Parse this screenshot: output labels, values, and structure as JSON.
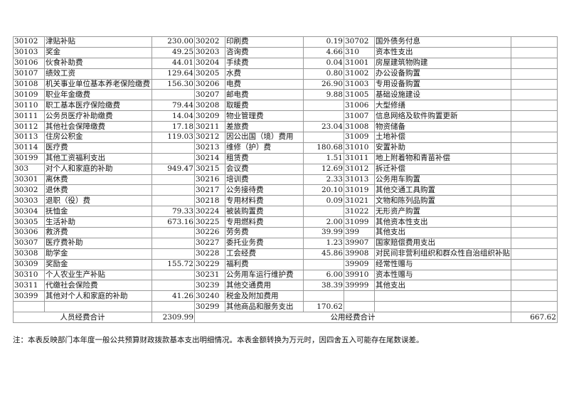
{
  "rows": [
    [
      "30102",
      "津贴补贴",
      "230.00",
      "30202",
      "印刷费",
      "0.19",
      "30702",
      "国外债务付息",
      ""
    ],
    [
      "30103",
      "奖金",
      "49.25",
      "30203",
      "咨询费",
      "4.66",
      "310",
      "资本性支出",
      ""
    ],
    [
      "30106",
      "伙食补助费",
      "44.01",
      "30204",
      "手续费",
      "0.04",
      "31001",
      "房屋建筑物购建",
      ""
    ],
    [
      "30107",
      "绩效工资",
      "129.64",
      "30205",
      "水费",
      "0.80",
      "31002",
      "办公设备购置",
      ""
    ],
    [
      "30108",
      "机关事业单位基本养老保险缴费",
      "156.30",
      "30206",
      "电费",
      "26.90",
      "31003",
      "专用设备购置",
      ""
    ],
    [
      "30109",
      "职业年金缴费",
      "",
      "30207",
      "邮电费",
      "9.88",
      "31005",
      "基础设施建设",
      ""
    ],
    [
      "30110",
      "职工基本医疗保险缴费",
      "79.44",
      "30208",
      "取暖费",
      "",
      "31006",
      "大型修缮",
      ""
    ],
    [
      "30111",
      "公务员医疗补助缴费",
      "14.04",
      "30209",
      "物业管理费",
      "",
      "31007",
      "信息网络及软件购置更新",
      ""
    ],
    [
      "30112",
      "其他社会保障缴费",
      "17.18",
      "30211",
      "差旅费",
      "23.04",
      "31008",
      "物资储备",
      ""
    ],
    [
      "30113",
      "住房公积金",
      "119.03",
      "30212",
      "因公出国（境）费用",
      "",
      "31009",
      "土地补偿",
      ""
    ],
    [
      "30114",
      "医疗费",
      "",
      "30213",
      "维修（护）费",
      "180.68",
      "31010",
      "安置补助",
      ""
    ],
    [
      "30199",
      "其他工资福利支出",
      "",
      "30214",
      "租赁费",
      "1.51",
      "31011",
      "地上附着物和青苗补偿",
      ""
    ],
    [
      "303",
      "对个人和家庭的补助",
      "949.47",
      "30215",
      "会议费",
      "12.69",
      "31012",
      "拆迁补偿",
      ""
    ],
    [
      "30301",
      "离休费",
      "",
      "30216",
      "培训费",
      "2.33",
      "31013",
      "公务用车购置",
      ""
    ],
    [
      "30302",
      "退休费",
      "",
      "30217",
      "公务接待费",
      "20.10",
      "31019",
      "其他交通工具购置",
      ""
    ],
    [
      "30303",
      "退职（役）费",
      "",
      "30218",
      "专用材料费",
      "0.09",
      "31021",
      "文物和陈列品购置",
      ""
    ],
    [
      "30304",
      "抚恤金",
      "79.33",
      "30224",
      "被装购置费",
      "",
      "31022",
      "无形资产购置",
      ""
    ],
    [
      "30305",
      "生活补助",
      "673.16",
      "30225",
      "专用燃料费",
      "2.00",
      "31099",
      "其他资本性支出",
      ""
    ],
    [
      "30306",
      "救济费",
      "",
      "30226",
      "劳务费",
      "39.99",
      "399",
      "其他支出",
      ""
    ],
    [
      "30307",
      "医疗费补助",
      "",
      "30227",
      "委托业务费",
      "1.23",
      "39907",
      "国家赔偿费用支出",
      ""
    ],
    [
      "30308",
      "助学金",
      "",
      "30228",
      "工会经费",
      "45.86",
      "39908",
      "对民间非营利组织和群众性自治组织补贴",
      ""
    ],
    [
      "30309",
      "奖励金",
      "155.72",
      "30229",
      "福利费",
      "",
      "39909",
      "经常性赠与",
      ""
    ],
    [
      "30310",
      "个人农业生产补贴",
      "",
      "30231",
      "公务用车运行维护费",
      "6.00",
      "39910",
      "资本性赠与",
      ""
    ],
    [
      "30311",
      "代缴社会保险费",
      "",
      "30239",
      "其他交通费用",
      "38.39",
      "39999",
      "其他支出",
      ""
    ],
    [
      "30399",
      "其他对个人和家庭的补助",
      "41.26",
      "30240",
      "税金及附加费用",
      "",
      "",
      "",
      ""
    ],
    [
      "",
      "",
      "",
      "30299",
      "其他商品和服务支出",
      "170.62",
      "",
      "",
      ""
    ]
  ],
  "totals": {
    "personnel_label": "人员经费合计",
    "personnel_value": "2309.99",
    "public_label": "公用经费合计",
    "public_value": "667.62"
  },
  "note": "注：本表反映部门本年度一般公共预算财政拨款基本支出明细情况。本表金额转换为万元时，因四舍五入可能存在尾数误差。"
}
